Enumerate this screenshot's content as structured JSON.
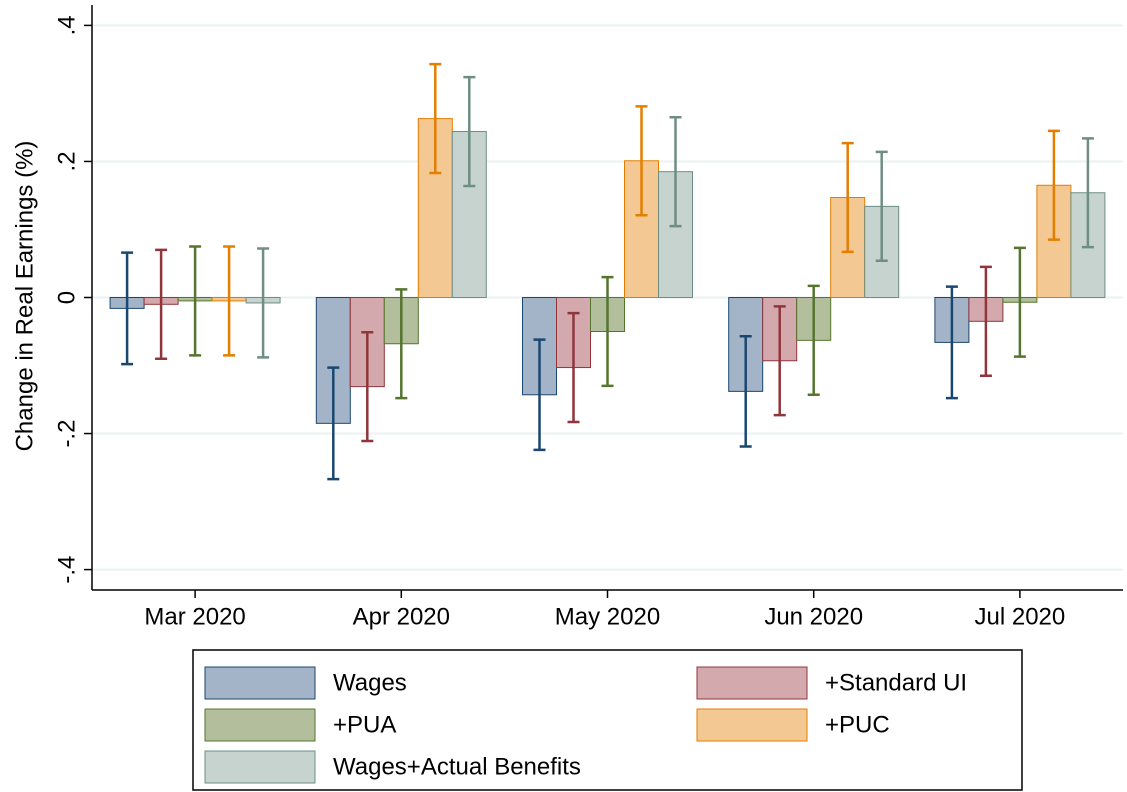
{
  "chart_data": {
    "type": "bar",
    "y_label": "Change in Real Earnings (%)",
    "categories": [
      "Mar 2020",
      "Apr 2020",
      "May 2020",
      "Jun 2020",
      "Jul 2020"
    ],
    "series": [
      {
        "name": "Wages",
        "color": "#a3b4c8",
        "line_color": "#1a476f",
        "values": [
          -0.016,
          -0.185,
          -0.143,
          -0.138,
          -0.066
        ],
        "errors": [
          0.082,
          0.082,
          0.081,
          0.081,
          0.082
        ]
      },
      {
        "name": "+Standard UI",
        "color": "#d3a9ae",
        "line_color": "#90353b",
        "values": [
          -0.01,
          -0.131,
          -0.103,
          -0.093,
          -0.035
        ],
        "errors": [
          0.08,
          0.08,
          0.08,
          0.08,
          0.08
        ]
      },
      {
        "name": "+PUA",
        "color": "#b3bf9c",
        "line_color": "#55752f",
        "values": [
          -0.005,
          -0.068,
          -0.05,
          -0.063,
          -0.007
        ],
        "errors": [
          0.08,
          0.08,
          0.08,
          0.08,
          0.08
        ]
      },
      {
        "name": "+PUC",
        "color": "#f4c893",
        "line_color": "#e37e00",
        "values": [
          -0.005,
          0.263,
          0.201,
          0.147,
          0.165
        ],
        "errors": [
          0.08,
          0.08,
          0.08,
          0.08,
          0.08
        ]
      },
      {
        "name": "Wages+Actual Benefits",
        "color": "#c6d3ce",
        "line_color": "#6e8e84",
        "values": [
          -0.008,
          0.244,
          0.185,
          0.134,
          0.154
        ],
        "errors": [
          0.08,
          0.08,
          0.08,
          0.08,
          0.08
        ]
      }
    ],
    "ylim": [
      -0.43,
      0.43
    ],
    "yticks": [
      {
        "value": -0.4,
        "label": "-.4"
      },
      {
        "value": -0.2,
        "label": "-.2"
      },
      0,
      {
        "value": 0.2,
        "label": ".2"
      },
      {
        "value": 0.4,
        "label": ".4"
      }
    ],
    "grid": true
  }
}
